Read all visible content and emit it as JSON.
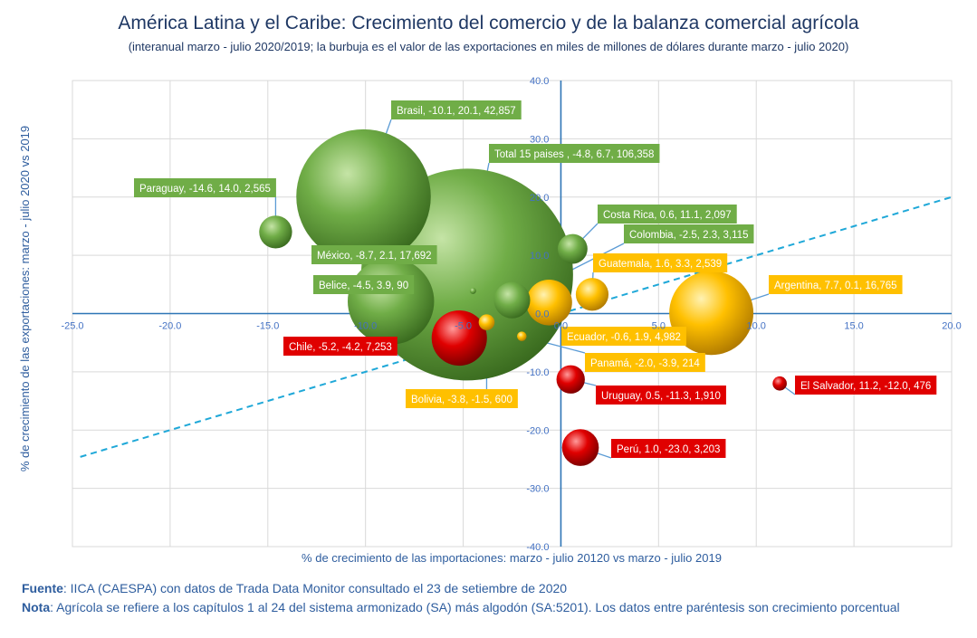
{
  "title": "América Latina y el Caribe: Crecimiento del comercio y de la balanza comercial agrícola",
  "subtitle": "(interanual marzo - julio 2020/2019; la burbuja es el valor de las exportaciones en miles de millones de dólares  durante marzo - julio 2020)",
  "footer": {
    "source_label": "Fuente",
    "source_text": ": IICA (CAESPA) con datos de Trada Data Monitor consultado el 23 de setiembre  de 2020",
    "note_label": "Nota",
    "note_text": ":  Agrícola se refiere a los capítulos 1 al 24 del sistema armonizado (SA) más algodón (SA:5201). Los datos entre paréntesis son crecimiento porcentual"
  },
  "colors": {
    "green": "#70ad47",
    "yellow": "#ffc000",
    "red": "#e00000",
    "axis": "#2e75b6",
    "grid": "#d9d9d9",
    "tick_text": "#4472c4",
    "diagonal": "#1fa8d8"
  },
  "chart_data": {
    "type": "scatter",
    "title": "América Latina y el Caribe: Crecimiento del comercio y de la balanza comercial agrícola",
    "xlabel": "% de crecimiento de las importaciones:  marzo - julio 20120  vs marzo - julio 2019",
    "ylabel": "% de crecimiento de las exportaciones:  marzo - julio 2020 vs 2019",
    "xlim": [
      -25,
      20
    ],
    "ylim": [
      -40,
      40
    ],
    "xticks": [
      "-25.0",
      "-20.0",
      "-15.0",
      "-10.0",
      "-5.0",
      "0.0",
      "5.0",
      "10.0",
      "15.0",
      "20.0"
    ],
    "yticks": [
      "40.0",
      "30.0",
      "20.0",
      "10.0",
      "0.0",
      "-10.0",
      "-20.0",
      "-30.0",
      "-40.0"
    ],
    "grid": true,
    "diagonal_line": "y = x",
    "bubble_size": "valor de exportaciones",
    "points": [
      {
        "label": "Total 15 paises , -4.8, 6.7,  106,358",
        "x": -4.8,
        "y": 6.7,
        "size": 106358,
        "color": "green"
      },
      {
        "label": "Brasil, -10.1, 20.1,  42,857",
        "x": -10.1,
        "y": 20.1,
        "size": 42857,
        "color": "green"
      },
      {
        "label": "México, -8.7, 2.1,  17,692",
        "x": -8.7,
        "y": 2.1,
        "size": 17692,
        "color": "green"
      },
      {
        "label": "Argentina, 7.7, 0.1,  16,765",
        "x": 7.7,
        "y": 0.1,
        "size": 16765,
        "color": "yellow"
      },
      {
        "label": "Chile, -5.2, -4.2,  7,253",
        "x": -5.2,
        "y": -4.2,
        "size": 7253,
        "color": "red"
      },
      {
        "label": "Ecuador, -0.6, 1.9,  4,982",
        "x": -0.6,
        "y": 1.9,
        "size": 4982,
        "color": "yellow"
      },
      {
        "label": "Perú, 1.0, -23.0,  3,203",
        "x": 1.0,
        "y": -23.0,
        "size": 3203,
        "color": "red"
      },
      {
        "label": "Colombia, -2.5, 2.3,  3,115",
        "x": -2.5,
        "y": 2.3,
        "size": 3115,
        "color": "green"
      },
      {
        "label": "Paraguay, -14.6, 14.0,  2,565",
        "x": -14.6,
        "y": 14.0,
        "size": 2565,
        "color": "green"
      },
      {
        "label": "Guatemala, 1.6, 3.3,  2,539",
        "x": 1.6,
        "y": 3.3,
        "size": 2539,
        "color": "yellow"
      },
      {
        "label": "Costa Rica, 0.6, 11.1,  2,097",
        "x": 0.6,
        "y": 11.1,
        "size": 2097,
        "color": "green"
      },
      {
        "label": "Uruguay, 0.5, -11.3,  1,910",
        "x": 0.5,
        "y": -11.3,
        "size": 1910,
        "color": "red"
      },
      {
        "label": "Bolivia, -3.8, -1.5,  600",
        "x": -3.8,
        "y": -1.5,
        "size": 600,
        "color": "yellow"
      },
      {
        "label": "El Salvador, 11.2, -12.0,  476",
        "x": 11.2,
        "y": -12.0,
        "size": 476,
        "color": "red"
      },
      {
        "label": "Panamá, -2.0, -3.9,  214",
        "x": -2.0,
        "y": -3.9,
        "size": 214,
        "color": "yellow"
      },
      {
        "label": "Belice, -4.5, 3.9,  90",
        "x": -4.5,
        "y": 3.9,
        "size": 90,
        "color": "green"
      }
    ]
  }
}
